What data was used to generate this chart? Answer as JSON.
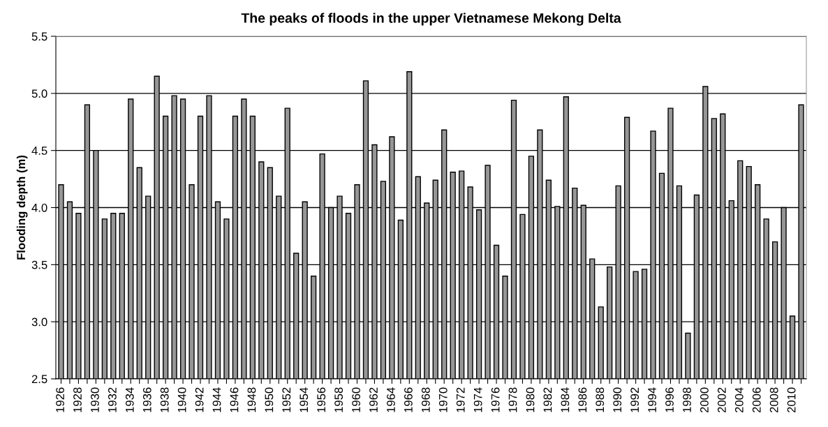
{
  "chart_data": {
    "type": "bar",
    "title": "The peaks of floods in the upper Vietnamese Mekong Delta",
    "ylabel": "Flooding depth (m)",
    "categories": [
      "1926",
      null,
      "1928",
      null,
      "1930",
      null,
      "1932",
      null,
      "1934",
      null,
      "1936",
      null,
      "1938",
      null,
      "1940",
      null,
      "1942",
      null,
      "1944",
      null,
      "1946",
      null,
      "1948",
      null,
      "1950",
      null,
      "1952",
      null,
      "1954",
      null,
      "1956",
      null,
      "1958",
      null,
      "1960",
      null,
      "1962",
      null,
      "1964",
      null,
      "1966",
      null,
      "1968",
      null,
      "1970",
      null,
      "1972",
      null,
      "1974",
      null,
      "1976",
      null,
      "1978",
      null,
      "1980",
      null,
      "1982",
      null,
      "1984",
      null,
      "1986",
      null,
      "1988",
      null,
      "1990",
      null,
      "1992",
      null,
      "1994",
      null,
      "1996",
      null,
      "1998",
      null,
      "2000",
      null,
      "2002",
      null,
      "2004",
      null,
      "2006",
      null,
      "2008",
      null,
      "2010",
      null
    ],
    "values": [
      4.2,
      4.05,
      3.95,
      4.9,
      4.5,
      3.9,
      3.95,
      3.95,
      4.95,
      4.35,
      4.1,
      5.15,
      4.8,
      4.98,
      4.95,
      4.2,
      4.8,
      4.98,
      4.05,
      3.9,
      4.8,
      4.95,
      4.8,
      4.4,
      4.35,
      4.1,
      4.87,
      3.6,
      4.05,
      3.4,
      4.47,
      4.0,
      4.1,
      3.95,
      4.2,
      5.11,
      4.55,
      4.23,
      4.62,
      3.89,
      5.19,
      4.27,
      4.04,
      4.24,
      4.68,
      4.31,
      4.32,
      4.18,
      3.98,
      4.37,
      3.67,
      3.4,
      4.94,
      3.94,
      4.45,
      4.68,
      4.24,
      4.01,
      4.97,
      4.17,
      4.02,
      3.55,
      3.13,
      3.48,
      4.19,
      4.79,
      3.44,
      3.46,
      4.67,
      4.3,
      4.87,
      4.19,
      2.9,
      4.11,
      5.06,
      4.78,
      4.82,
      4.06,
      4.41,
      4.36,
      4.2,
      3.9,
      3.7,
      4.0,
      3.05,
      4.9
    ],
    "color": "#969696",
    "ylim": [
      2.5,
      5.5
    ],
    "yticks": [
      {
        "value": 2.5,
        "label": "2.5"
      },
      {
        "value": 3.0,
        "label": "3.0"
      },
      {
        "value": 3.5,
        "label": "3.5"
      },
      {
        "value": 4.0,
        "label": "4.0"
      },
      {
        "value": 4.5,
        "label": "4.5"
      },
      {
        "value": 5.0,
        "label": "5.0"
      },
      {
        "value": 5.5,
        "label": "5.5"
      }
    ],
    "grid": "y"
  }
}
